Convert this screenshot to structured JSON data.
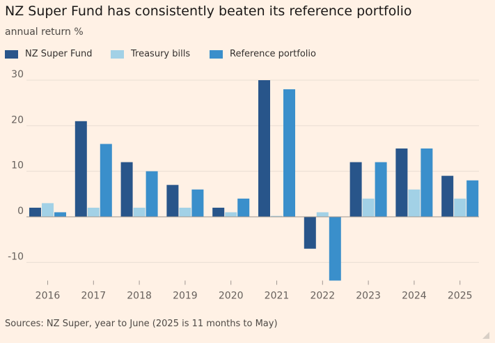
{
  "title": "NZ Super Fund has consistently beaten its reference portfolio",
  "subtitle": "annual return %",
  "source": "Sources: NZ Super, year to June (2025 is 11 months to May)",
  "colors": {
    "background": "#FFF1E5",
    "gridline": "#E9DED3",
    "zeroline": "#9E9690",
    "tick_text": "#66605C"
  },
  "chart_data": {
    "type": "bar",
    "title": "NZ Super Fund has consistently beaten its reference portfolio",
    "ylabel": "annual return %",
    "xlabel": "",
    "categories": [
      "2016",
      "2017",
      "2018",
      "2019",
      "2020",
      "2021",
      "2022",
      "2023",
      "2024",
      "2025"
    ],
    "series": [
      {
        "name": "NZ Super Fund",
        "color": "#28558A",
        "values": [
          2,
          21,
          12,
          7,
          2,
          30,
          -7,
          12,
          15,
          9
        ]
      },
      {
        "name": "Treasury bills",
        "color": "#A2D1E6",
        "values": [
          3,
          2,
          2,
          2,
          1,
          0.2,
          1,
          4,
          6,
          4
        ]
      },
      {
        "name": "Reference portfolio",
        "color": "#3A8FCB",
        "values": [
          1,
          16,
          10,
          6,
          4,
          28,
          -14,
          12,
          15,
          8
        ]
      }
    ],
    "ylim": [
      -14,
      30
    ],
    "yticks": [
      30,
      20,
      10,
      0,
      -10
    ],
    "grid": true,
    "legend": "top-left"
  }
}
